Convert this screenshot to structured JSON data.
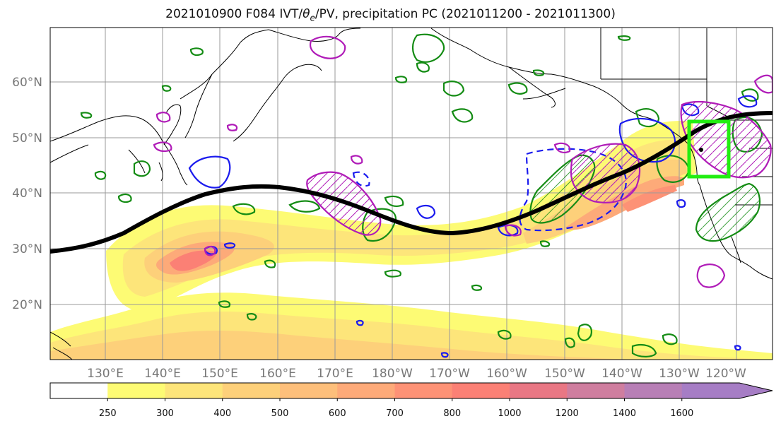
{
  "title": {
    "prefix": "2021010900 F084 IVT/",
    "symbol": "θ",
    "subscript": "e",
    "suffix": "/PV, precipitation PC (2021011200 - 2021011300)"
  },
  "map": {
    "lat_labels": [
      "60°N",
      "50°N",
      "40°N",
      "30°N",
      "20°N"
    ],
    "lon_labels": [
      "130°E",
      "140°E",
      "150°E",
      "160°E",
      "170°E",
      "180°W",
      "170°W",
      "160°W",
      "150°W",
      "140°W",
      "130°W",
      "120°W"
    ],
    "colors": {
      "coast": "#000000",
      "jet": "#000000",
      "green": "#148c14",
      "magenta": "#b01cb8",
      "blue": "#1b1bee",
      "box": "#22ee11",
      "grid": "#999999"
    }
  },
  "colorbar": {
    "ticks": [
      "250",
      "300",
      "400",
      "500",
      "600",
      "700",
      "800",
      "1000",
      "1200",
      "1400",
      "1600"
    ],
    "colors": [
      "#ffffff",
      "#fdfb74",
      "#fde57a",
      "#fdd07a",
      "#fdbf7b",
      "#fdaa79",
      "#fd9276",
      "#fb8075",
      "#e97784",
      "#cf7e9f",
      "#b87fb6",
      "#a67dc5"
    ]
  }
}
